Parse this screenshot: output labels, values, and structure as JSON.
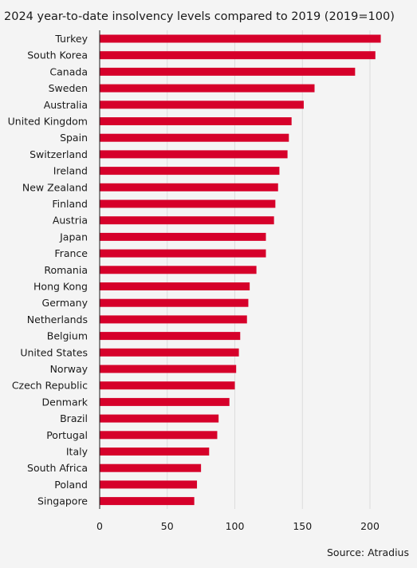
{
  "chart_data": {
    "type": "bar",
    "orientation": "horizontal",
    "title": "2024 year-to-date insolvency levels compared to 2019 (2019=100)",
    "source": "Source: Atradius",
    "categories": [
      "Turkey",
      "South Korea",
      "Canada",
      "Sweden",
      "Australia",
      "United Kingdom",
      "Spain",
      "Switzerland",
      "Ireland",
      "New Zealand",
      "Finland",
      "Austria",
      "Japan",
      "France",
      "Romania",
      "Hong Kong",
      "Germany",
      "Netherlands",
      "Belgium",
      "United States",
      "Norway",
      "Czech Republic",
      "Denmark",
      "Brazil",
      "Portugal",
      "Italy",
      "South Africa",
      "Poland",
      "Singapore"
    ],
    "values": [
      208,
      204,
      189,
      159,
      151,
      142,
      140,
      139,
      133,
      132,
      130,
      129,
      123,
      123,
      116,
      111,
      110,
      109,
      104,
      103,
      101,
      100,
      96,
      88,
      87,
      81,
      75,
      72,
      70
    ],
    "xlim": [
      0,
      210
    ],
    "xticks": [
      0,
      50,
      100,
      150,
      200
    ],
    "grid": "vertical",
    "bar_color": "#d6002a",
    "grid_color": "#dcdcdc",
    "axis_color": "#1a1a1a"
  }
}
